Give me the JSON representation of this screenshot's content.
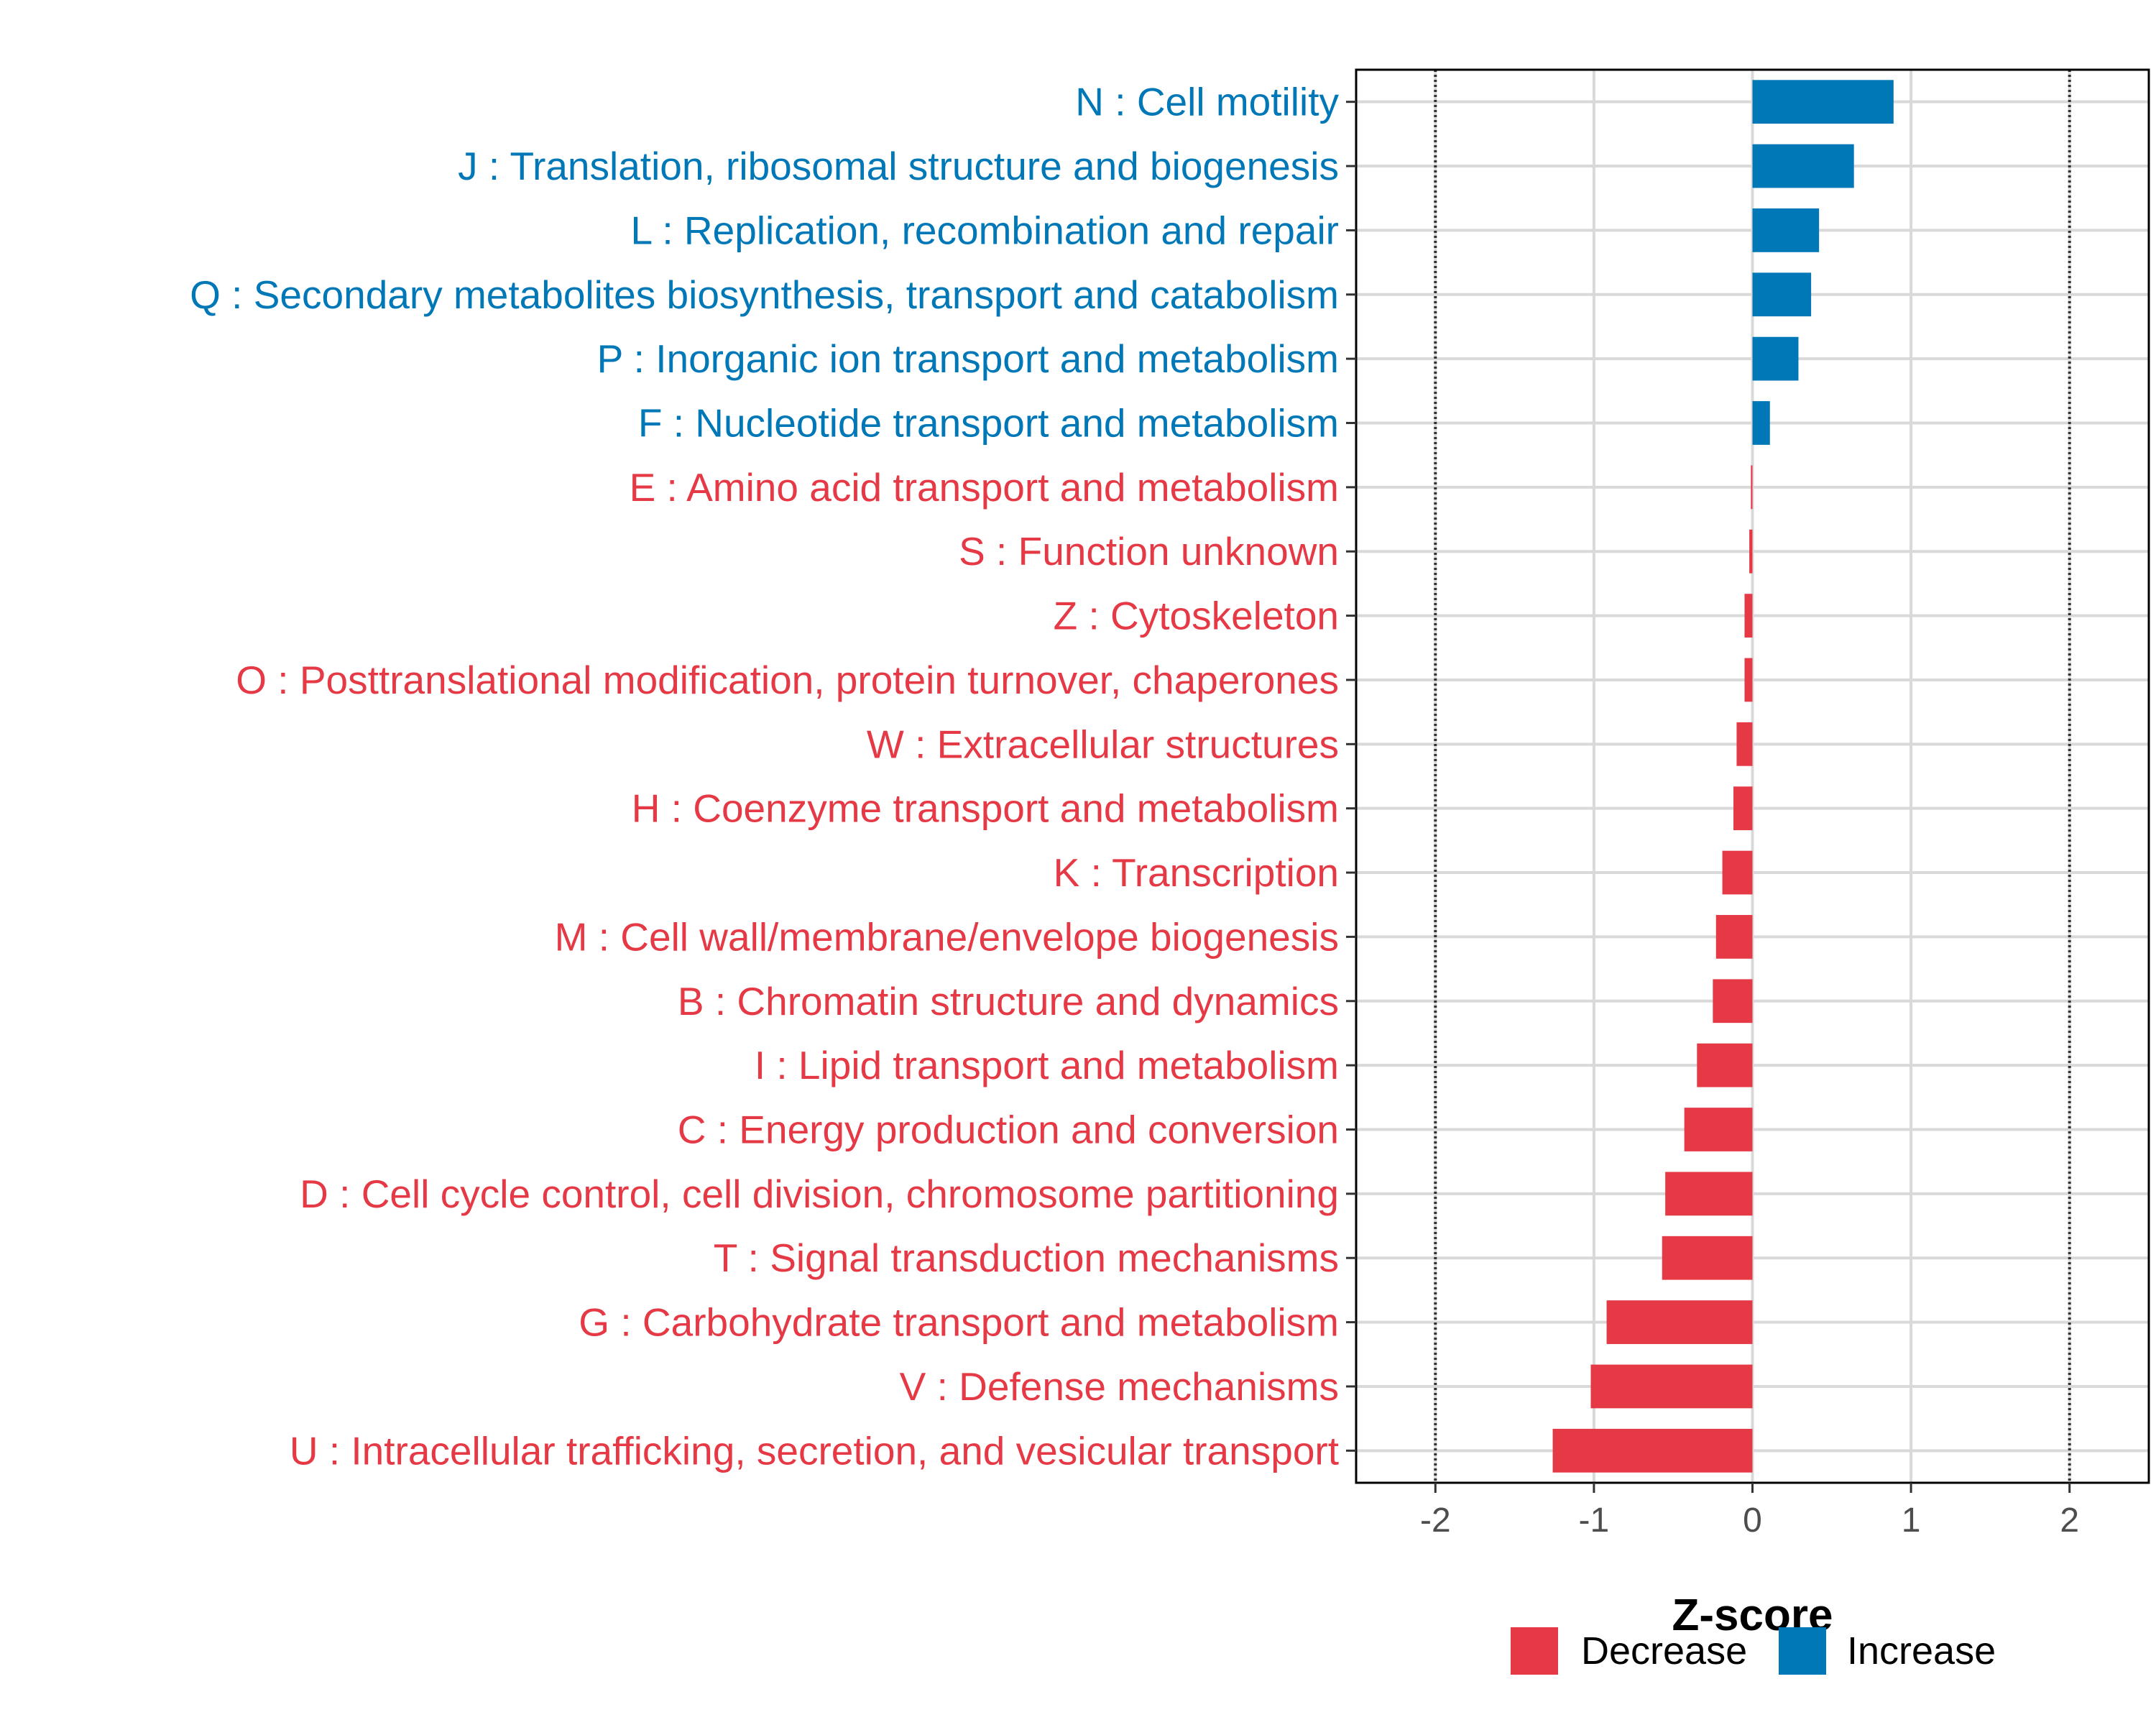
{
  "chart_data": {
    "type": "bar",
    "orientation": "horizontal",
    "title": "",
    "xlabel": "Z-score",
    "ylabel": "",
    "xlim": [
      -2.5,
      2.5
    ],
    "xticks": [
      -2,
      -1,
      0,
      1,
      2
    ],
    "tick_labels": [
      "-2",
      "-1",
      "0",
      "1",
      "2"
    ],
    "reference_lines": [
      -2,
      2
    ],
    "grid": true,
    "colors": {
      "Decrease": "#e63946",
      "Increase": "#0077b6"
    },
    "categories": [
      "N : Cell motility",
      "J : Translation, ribosomal structure and biogenesis",
      "L : Replication, recombination and repair",
      "Q : Secondary metabolites biosynthesis, transport and catabolism",
      "P : Inorganic ion transport and metabolism",
      "F : Nucleotide transport and metabolism",
      "E : Amino acid transport and metabolism",
      "S : Function unknown",
      "Z : Cytoskeleton",
      "O : Posttranslational modification, protein turnover, chaperones",
      "W : Extracellular structures",
      "H : Coenzyme transport and metabolism",
      "K : Transcription",
      "M : Cell wall/membrane/envelope biogenesis",
      "B : Chromatin structure and dynamics",
      "I : Lipid transport and metabolism",
      "C : Energy production and conversion",
      "D : Cell cycle control, cell division, chromosome partitioning",
      "T : Signal transduction mechanisms",
      "G : Carbohydrate transport and metabolism",
      "V : Defense mechanisms",
      "U : Intracellular trafficking, secretion, and vesicular transport"
    ],
    "values": [
      0.89,
      0.64,
      0.42,
      0.37,
      0.29,
      0.11,
      -0.01,
      -0.02,
      -0.05,
      -0.05,
      -0.1,
      -0.12,
      -0.19,
      -0.23,
      -0.25,
      -0.35,
      -0.43,
      -0.55,
      -0.57,
      -0.92,
      -1.02,
      -1.26
    ],
    "groups": [
      "Increase",
      "Increase",
      "Increase",
      "Increase",
      "Increase",
      "Increase",
      "Decrease",
      "Decrease",
      "Decrease",
      "Decrease",
      "Decrease",
      "Decrease",
      "Decrease",
      "Decrease",
      "Decrease",
      "Decrease",
      "Decrease",
      "Decrease",
      "Decrease",
      "Decrease",
      "Decrease",
      "Decrease"
    ],
    "legend": {
      "position": "bottom",
      "entries": [
        {
          "label": "Decrease",
          "color": "#e63946"
        },
        {
          "label": "Increase",
          "color": "#0077b6"
        }
      ]
    }
  }
}
